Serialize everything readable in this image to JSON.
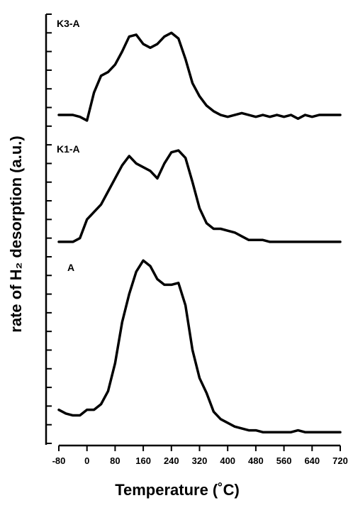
{
  "chart_data": {
    "type": "line",
    "x_label": "Temperature (˚C)",
    "y_label": "rate of H₂ desorption (a.u.)",
    "x": [
      -80,
      -60,
      -40,
      -20,
      0,
      20,
      40,
      60,
      80,
      100,
      120,
      140,
      160,
      180,
      200,
      220,
      240,
      260,
      280,
      300,
      320,
      340,
      360,
      380,
      400,
      420,
      440,
      460,
      480,
      500,
      520,
      540,
      560,
      580,
      600,
      620,
      640,
      660,
      680,
      700,
      720
    ],
    "series": [
      {
        "name": "K3-A",
        "color": "#000000",
        "values": [
          17.6,
          17.6,
          17.6,
          17.5,
          17.3,
          18.8,
          19.7,
          19.9,
          20.3,
          21.0,
          21.8,
          21.9,
          21.4,
          21.2,
          21.4,
          21.8,
          22.0,
          21.7,
          20.6,
          19.3,
          18.6,
          18.1,
          17.8,
          17.6,
          17.5,
          17.6,
          17.7,
          17.6,
          17.5,
          17.6,
          17.5,
          17.6,
          17.5,
          17.6,
          17.4,
          17.6,
          17.5,
          17.6,
          17.6,
          17.6,
          17.6
        ]
      },
      {
        "name": "K1-A",
        "color": "#000000",
        "values": [
          10.8,
          10.8,
          10.8,
          11.0,
          12.0,
          12.4,
          12.8,
          13.5,
          14.2,
          14.9,
          15.4,
          15.0,
          14.8,
          14.6,
          14.2,
          15.0,
          15.6,
          15.7,
          15.3,
          14.0,
          12.6,
          11.8,
          11.5,
          11.5,
          11.4,
          11.3,
          11.1,
          10.9,
          10.9,
          10.9,
          10.8,
          10.8,
          10.8,
          10.8,
          10.8,
          10.8,
          10.8,
          10.8,
          10.8,
          10.8,
          10.8
        ]
      },
      {
        "name": "A",
        "color": "#000000",
        "values": [
          1.8,
          1.6,
          1.5,
          1.5,
          1.8,
          1.8,
          2.1,
          2.8,
          4.3,
          6.5,
          8.0,
          9.2,
          9.8,
          9.5,
          8.8,
          8.5,
          8.5,
          8.6,
          7.4,
          5.0,
          3.5,
          2.7,
          1.7,
          1.3,
          1.1,
          0.9,
          0.8,
          0.7,
          0.7,
          0.6,
          0.6,
          0.6,
          0.6,
          0.6,
          0.7,
          0.6,
          0.6,
          0.6,
          0.6,
          0.6,
          0.6
        ]
      }
    ],
    "xlim": [
      -80,
      720
    ],
    "xticks": [
      -80,
      0,
      80,
      160,
      240,
      320,
      400,
      480,
      560,
      640,
      720
    ],
    "ylim": [
      0,
      23
    ],
    "yticks": [
      0,
      1,
      2,
      3,
      4,
      5,
      6,
      7,
      8,
      9,
      10,
      11,
      12,
      13,
      14,
      15,
      16,
      17,
      18,
      19,
      20,
      21,
      22,
      23
    ]
  }
}
